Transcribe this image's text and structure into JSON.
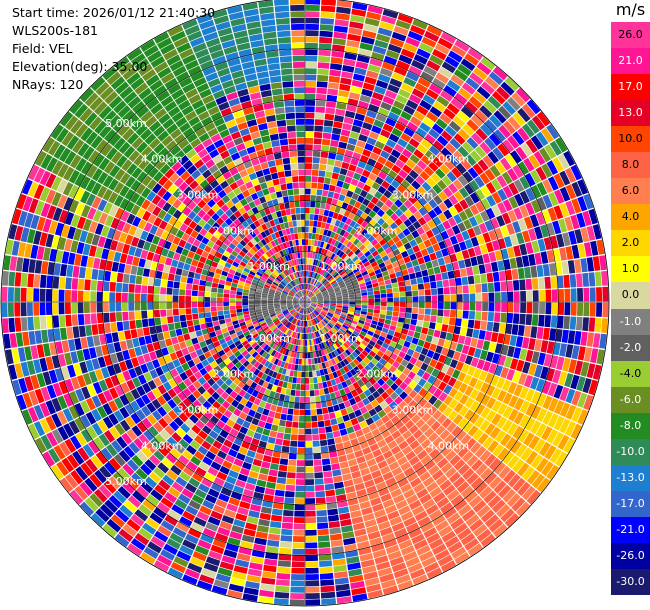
{
  "info": {
    "start_time": "Start time: 2026/01/12 21:40:30",
    "instrument": "WLS200s-181",
    "field": "Field: VEL",
    "elevation": "Elevation(deg): 35.00",
    "nrays": "NRays: 120"
  },
  "colorbar": {
    "unit": "m/s",
    "ticks": [
      "26.0",
      "21.0",
      "17.0",
      "13.0",
      "10.0",
      "8.0",
      "6.0",
      "4.0",
      "2.0",
      "1.0",
      "0.0",
      "-1.0",
      "-2.0",
      "-4.0",
      "-6.0",
      "-8.0",
      "-10.0",
      "-13.0",
      "-17.0",
      "-21.0",
      "-26.0",
      "-30.0"
    ],
    "colors": [
      "#ff3399",
      "#ff1493",
      "#ff0000",
      "#e60026",
      "#ff4500",
      "#ff6347",
      "#ff7f50",
      "#ffa500",
      "#ffd700",
      "#ffff00",
      "#d8d8a0",
      "#808080",
      "#606060",
      "#9acd32",
      "#6b8e23",
      "#228b22",
      "#2e8b57",
      "#1e7fd0",
      "#3366cc",
      "#0000ff",
      "#0000a0",
      "#1a1a6e"
    ]
  },
  "chart_data": {
    "type": "heatmap",
    "projection": "polar-ppi",
    "field": "VEL",
    "unit": "m/s",
    "nrays": 120,
    "elevation_deg": 35.0,
    "max_range_km": 6.0,
    "range_ring_labels": [
      "1.00km",
      "2.00km",
      "3.00km",
      "4.00km",
      "5.00km"
    ],
    "range_rings_km": [
      1,
      2,
      3,
      4,
      5
    ],
    "value_range": [
      -30,
      30
    ],
    "color_levels": [
      -30,
      -26,
      -21,
      -17,
      -13,
      -10,
      -8,
      -6,
      -4,
      -2,
      -1,
      0,
      1,
      2,
      4,
      6,
      8,
      10,
      13,
      17,
      21,
      26,
      30
    ]
  }
}
